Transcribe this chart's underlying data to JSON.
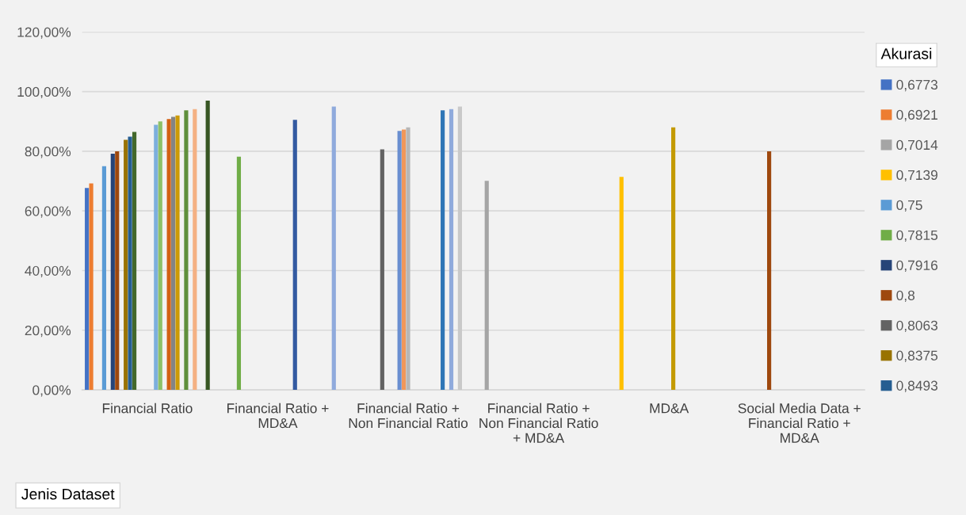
{
  "chart_data": {
    "type": "bar",
    "xlabel": "Jenis Dataset",
    "legend_title": "Akurasi",
    "categories": [
      "Financial Ratio",
      "Financial Ratio +\nMD&A",
      "Financial Ratio +\nNon Financial Ratio",
      "Financial Ratio +\nNon Financial Ratio\n+ MD&A",
      "MD&A",
      "Social Media Data +\nFinancial Ratio +\nMD&A"
    ],
    "series": [
      {
        "name": "0,6773",
        "color": "#4472c4",
        "values": [
          67.7,
          null,
          null,
          null,
          null,
          null
        ]
      },
      {
        "name": "0,6921",
        "color": "#ed7d31",
        "values": [
          69.2,
          null,
          null,
          null,
          null,
          null
        ]
      },
      {
        "name": "0,7014",
        "color": "#a5a5a5",
        "values": [
          null,
          null,
          null,
          70.1,
          null,
          null
        ]
      },
      {
        "name": "0,7139",
        "color": "#ffc000",
        "values": [
          null,
          null,
          null,
          null,
          71.4,
          null
        ]
      },
      {
        "name": "0,75",
        "color": "#5b9bd5",
        "values": [
          75,
          null,
          null,
          null,
          null,
          null
        ]
      },
      {
        "name": "0,7815",
        "color": "#70ad47",
        "values": [
          null,
          78.2,
          null,
          null,
          null,
          null
        ]
      },
      {
        "name": "0,7916",
        "color": "#264478",
        "values": [
          79.2,
          null,
          null,
          null,
          null,
          null
        ]
      },
      {
        "name": "0,8",
        "color": "#9e480e",
        "values": [
          80,
          null,
          null,
          null,
          null,
          80
        ]
      },
      {
        "name": "0,8063",
        "color": "#636363",
        "values": [
          null,
          null,
          80.6,
          null,
          null,
          null
        ]
      },
      {
        "name": "0,8375",
        "color": "#997300",
        "values": [
          83.8,
          null,
          null,
          null,
          null,
          null
        ]
      },
      {
        "name": "0,8493",
        "color": "#255e91",
        "values": [
          84.9,
          null,
          null,
          null,
          null,
          null
        ]
      },
      {
        "color": "#43682b",
        "values": [
          86.5,
          null,
          null,
          null,
          null,
          null
        ]
      },
      {
        "color": "#698ed0",
        "values": [
          null,
          null,
          86.8,
          null,
          null,
          null
        ]
      },
      {
        "color": "#f1975a",
        "values": [
          null,
          null,
          87.3,
          null,
          null,
          null
        ]
      },
      {
        "color": "#b7b7b7",
        "values": [
          null,
          null,
          88,
          null,
          null,
          null
        ]
      },
      {
        "color": "#c49a00",
        "values": [
          null,
          null,
          null,
          null,
          88,
          null
        ]
      },
      {
        "color": "#7cafdd",
        "values": [
          88.9,
          null,
          null,
          null,
          null,
          null
        ]
      },
      {
        "color": "#8cc168",
        "values": [
          90,
          null,
          null,
          null,
          null,
          null
        ]
      },
      {
        "color": "#335aa1",
        "values": [
          null,
          90.5,
          null,
          null,
          null,
          null
        ]
      },
      {
        "color": "#d26012",
        "values": [
          90.8,
          null,
          null,
          null,
          null,
          null
        ]
      },
      {
        "color": "#848484",
        "values": [
          91.5,
          null,
          null,
          null,
          null,
          null
        ]
      },
      {
        "color": "#cc9a06",
        "values": [
          92,
          null,
          null,
          null,
          null,
          null
        ]
      },
      {
        "color": "#2e75b6",
        "values": [
          null,
          null,
          93.7,
          null,
          null,
          null
        ]
      },
      {
        "color": "#5f8f3b",
        "values": [
          93.7,
          null,
          null,
          null,
          null,
          null
        ]
      },
      {
        "color": "#8faadc",
        "values": [
          null,
          null,
          94.1,
          null,
          null,
          null
        ]
      },
      {
        "color": "#f4b183",
        "values": [
          94.1,
          null,
          null,
          null,
          null,
          null
        ]
      },
      {
        "color": "#c9c9c9",
        "values": [
          null,
          null,
          95,
          null,
          null,
          null
        ]
      },
      {
        "color": "#8faadc",
        "values": [
          null,
          95,
          null,
          null,
          null,
          null
        ]
      },
      {
        "color": "#375623",
        "values": [
          97,
          null,
          null,
          null,
          null,
          null
        ]
      }
    ],
    "ylim": [
      0,
      120
    ],
    "yticks": [
      {
        "value": 0,
        "label": "0,00%"
      },
      {
        "value": 20,
        "label": "20,00%"
      },
      {
        "value": 40,
        "label": "40,00%"
      },
      {
        "value": 60,
        "label": "60,00%"
      },
      {
        "value": 80,
        "label": "80,00%"
      },
      {
        "value": 100,
        "label": "100,00%"
      },
      {
        "value": 120,
        "label": "120,00%"
      }
    ],
    "grid": "y",
    "legend": "right"
  }
}
